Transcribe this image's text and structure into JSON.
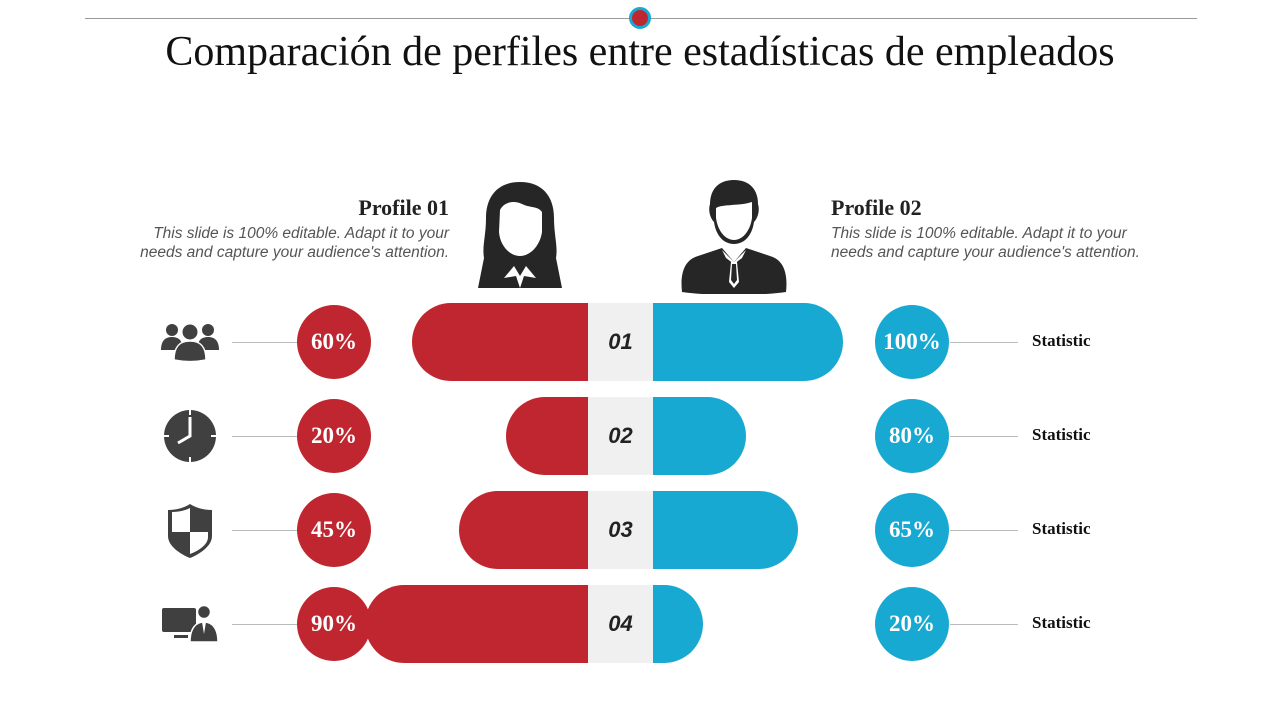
{
  "title": "Comparación de perfiles entre estadísticas de empleados",
  "profiles": [
    {
      "title": "Profile 01",
      "description": "This slide is 100% editable. Adapt it to your needs and capture your audience's attention."
    },
    {
      "title": "Profile 02",
      "description": "This slide is 100% editable. Adapt it to your needs and capture your audience's attention."
    }
  ],
  "colors": {
    "profile1": "#c0262f",
    "profile2": "#17a9d1"
  },
  "rows": [
    {
      "number": "01",
      "icon": "team-icon",
      "profile1": "60%",
      "profile2": "100%",
      "label": "Statistic"
    },
    {
      "number": "02",
      "icon": "clock-icon",
      "profile1": "20%",
      "profile2": "80%",
      "label": "Statistic"
    },
    {
      "number": "03",
      "icon": "shield-icon",
      "profile1": "45%",
      "profile2": "65%",
      "label": "Statistic"
    },
    {
      "number": "04",
      "icon": "computer-user-icon",
      "profile1": "90%",
      "profile2": "20%",
      "label": "Statistic"
    }
  ]
}
